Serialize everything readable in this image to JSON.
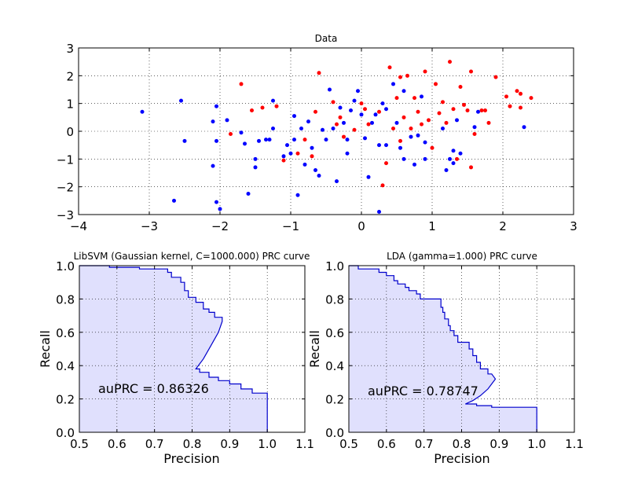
{
  "chart_data": [
    {
      "type": "scatter",
      "title": "Data",
      "xlabel": "",
      "ylabel": "",
      "xlim": [
        -4,
        3
      ],
      "ylim": [
        -3,
        3
      ],
      "xticks": [
        "−4",
        "−3",
        "−2",
        "−1",
        "0",
        "1",
        "2",
        "3"
      ],
      "yticks": [
        "−3",
        "−2",
        "−1",
        "0",
        "1",
        "2",
        "3"
      ],
      "grid": true,
      "colors": {
        "blue": "#0000ff",
        "red": "#ff0000"
      },
      "series": [
        {
          "color": "blue",
          "points": [
            [
              -3.1,
              0.7
            ],
            [
              -2.55,
              1.1
            ],
            [
              -2.5,
              -0.35
            ],
            [
              -2.65,
              -2.5
            ],
            [
              -2.1,
              -1.25
            ],
            [
              -2.05,
              -0.35
            ],
            [
              -2.05,
              0.9
            ],
            [
              -2.1,
              0.35
            ],
            [
              -1.9,
              0.4
            ],
            [
              -2.05,
              -2.55
            ],
            [
              -2.0,
              -2.8
            ],
            [
              -1.65,
              -0.45
            ],
            [
              -1.6,
              -2.25
            ],
            [
              -1.5,
              -1.3
            ],
            [
              -1.5,
              -1.0
            ],
            [
              -1.45,
              -0.35
            ],
            [
              -1.35,
              -0.3
            ],
            [
              -1.3,
              -0.3
            ],
            [
              -1.25,
              1.1
            ],
            [
              -1.25,
              0.1
            ],
            [
              -1.1,
              -0.9
            ],
            [
              -1.05,
              -0.5
            ],
            [
              -1.0,
              -0.8
            ],
            [
              -0.95,
              -0.3
            ],
            [
              -0.95,
              0.55
            ],
            [
              -0.9,
              -2.3
            ],
            [
              -0.85,
              0.1
            ],
            [
              -0.8,
              -1.2
            ],
            [
              -0.75,
              0.35
            ],
            [
              -0.7,
              -0.6
            ],
            [
              -0.65,
              -1.4
            ],
            [
              -0.6,
              -1.6
            ],
            [
              -0.55,
              0.05
            ],
            [
              -0.5,
              -0.3
            ],
            [
              -0.45,
              1.5
            ],
            [
              -0.4,
              0.1
            ],
            [
              -0.35,
              -1.8
            ],
            [
              -0.3,
              0.85
            ],
            [
              -0.25,
              0.3
            ],
            [
              -0.2,
              -0.3
            ],
            [
              -0.15,
              0.75
            ],
            [
              -0.1,
              1.1
            ],
            [
              -0.05,
              1.45
            ],
            [
              0.0,
              0.6
            ],
            [
              0.05,
              -0.25
            ],
            [
              0.1,
              -1.65
            ],
            [
              0.2,
              0.6
            ],
            [
              0.25,
              -0.5
            ],
            [
              0.25,
              -2.9
            ],
            [
              0.3,
              1.0
            ],
            [
              0.35,
              0.8
            ],
            [
              0.35,
              -0.5
            ],
            [
              0.45,
              1.7
            ],
            [
              0.5,
              0.3
            ],
            [
              0.55,
              -0.6
            ],
            [
              0.6,
              -1.0
            ],
            [
              0.6,
              1.45
            ],
            [
              0.7,
              -0.2
            ],
            [
              0.75,
              -1.2
            ],
            [
              0.8,
              -0.15
            ],
            [
              0.85,
              1.25
            ],
            [
              0.9,
              -1.0
            ],
            [
              0.9,
              -0.4
            ],
            [
              1.15,
              0.1
            ],
            [
              1.2,
              -1.4
            ],
            [
              1.25,
              -1.0
            ],
            [
              1.3,
              -0.7
            ],
            [
              1.35,
              0.4
            ],
            [
              1.4,
              -0.8
            ],
            [
              1.6,
              0.15
            ],
            [
              1.65,
              0.7
            ],
            [
              2.3,
              0.15
            ],
            [
              1.3,
              -1.15
            ],
            [
              -1.7,
              -0.05
            ],
            [
              -0.2,
              -0.8
            ],
            [
              0.15,
              0.3
            ]
          ]
        },
        {
          "color": "red",
          "points": [
            [
              -1.85,
              -0.1
            ],
            [
              -1.7,
              1.7
            ],
            [
              -1.55,
              0.75
            ],
            [
              -1.4,
              0.85
            ],
            [
              -1.2,
              0.9
            ],
            [
              -1.1,
              -1.05
            ],
            [
              -0.9,
              -0.8
            ],
            [
              -0.8,
              -0.3
            ],
            [
              -0.7,
              -0.9
            ],
            [
              -0.6,
              2.1
            ],
            [
              -0.4,
              1.05
            ],
            [
              -0.3,
              0.5
            ],
            [
              -0.25,
              -0.2
            ],
            [
              -0.1,
              0.05
            ],
            [
              0.0,
              1.0
            ],
            [
              0.05,
              0.8
            ],
            [
              0.1,
              0.25
            ],
            [
              0.25,
              0.7
            ],
            [
              0.3,
              -1.95
            ],
            [
              0.35,
              -1.15
            ],
            [
              0.4,
              2.3
            ],
            [
              0.45,
              0.1
            ],
            [
              0.5,
              1.2
            ],
            [
              0.55,
              1.95
            ],
            [
              0.6,
              0.5
            ],
            [
              0.65,
              2.0
            ],
            [
              0.7,
              0.1
            ],
            [
              0.75,
              1.2
            ],
            [
              0.8,
              0.7
            ],
            [
              0.85,
              0.25
            ],
            [
              0.9,
              2.15
            ],
            [
              0.95,
              0.4
            ],
            [
              1.0,
              -0.6
            ],
            [
              1.1,
              0.65
            ],
            [
              1.15,
              1.05
            ],
            [
              1.2,
              0.3
            ],
            [
              1.25,
              2.5
            ],
            [
              1.3,
              0.8
            ],
            [
              1.35,
              -1.0
            ],
            [
              1.4,
              1.6
            ],
            [
              1.45,
              0.95
            ],
            [
              1.5,
              0.75
            ],
            [
              1.55,
              2.15
            ],
            [
              1.6,
              -0.1
            ],
            [
              1.7,
              0.75
            ],
            [
              1.8,
              0.3
            ],
            [
              1.9,
              1.95
            ],
            [
              2.05,
              1.25
            ],
            [
              2.1,
              0.9
            ],
            [
              2.2,
              1.45
            ],
            [
              2.25,
              0.85
            ],
            [
              2.4,
              1.2
            ],
            [
              2.25,
              1.35
            ],
            [
              1.55,
              -1.3
            ],
            [
              0.55,
              -0.35
            ],
            [
              -0.65,
              0.7
            ],
            [
              1.05,
              1.7
            ],
            [
              1.75,
              0.75
            ],
            [
              -0.35,
              0.25
            ]
          ]
        }
      ]
    },
    {
      "type": "area",
      "title": "LibSVM (Gaussian kernel, C=1000.000) PRC curve",
      "xlabel": "Precision",
      "ylabel": "Recall",
      "xlim": [
        0.5,
        1.1
      ],
      "ylim": [
        0.0,
        1.0
      ],
      "xticks": [
        "0.5",
        "0.6",
        "0.7",
        "0.8",
        "0.9",
        "1.0",
        "1.1"
      ],
      "yticks": [
        "0.0",
        "0.2",
        "0.4",
        "0.6",
        "0.8",
        "1.0"
      ],
      "grid": true,
      "annotation": "auPRC = 0.86326",
      "line_color": "#0000cc",
      "fill_color": "#e0e0fd",
      "points": [
        [
          0.5,
          1.0
        ],
        [
          0.58,
          1.0
        ],
        [
          0.58,
          0.99
        ],
        [
          0.66,
          0.99
        ],
        [
          0.66,
          0.98
        ],
        [
          0.735,
          0.98
        ],
        [
          0.735,
          0.96
        ],
        [
          0.745,
          0.96
        ],
        [
          0.745,
          0.93
        ],
        [
          0.77,
          0.93
        ],
        [
          0.77,
          0.9
        ],
        [
          0.78,
          0.9
        ],
        [
          0.78,
          0.85
        ],
        [
          0.79,
          0.85
        ],
        [
          0.79,
          0.81
        ],
        [
          0.81,
          0.81
        ],
        [
          0.81,
          0.78
        ],
        [
          0.83,
          0.78
        ],
        [
          0.83,
          0.74
        ],
        [
          0.845,
          0.74
        ],
        [
          0.845,
          0.72
        ],
        [
          0.86,
          0.72
        ],
        [
          0.86,
          0.69
        ],
        [
          0.88,
          0.69
        ],
        [
          0.88,
          0.665
        ],
        [
          0.87,
          0.6
        ],
        [
          0.85,
          0.52
        ],
        [
          0.83,
          0.44
        ],
        [
          0.81,
          0.38
        ],
        [
          0.82,
          0.38
        ],
        [
          0.82,
          0.36
        ],
        [
          0.845,
          0.36
        ],
        [
          0.845,
          0.33
        ],
        [
          0.87,
          0.33
        ],
        [
          0.87,
          0.31
        ],
        [
          0.9,
          0.31
        ],
        [
          0.9,
          0.29
        ],
        [
          0.93,
          0.29
        ],
        [
          0.93,
          0.26
        ],
        [
          0.96,
          0.26
        ],
        [
          0.96,
          0.235
        ],
        [
          1.0,
          0.235
        ],
        [
          1.0,
          0.0
        ],
        [
          0.5,
          0.0
        ]
      ]
    },
    {
      "type": "area",
      "title": "LDA (gamma=1.000) PRC curve",
      "xlabel": "Precision",
      "ylabel": "Recall",
      "xlim": [
        0.5,
        1.1
      ],
      "ylim": [
        0.0,
        1.0
      ],
      "xticks": [
        "0.5",
        "0.6",
        "0.7",
        "0.8",
        "0.9",
        "1.0",
        "1.1"
      ],
      "yticks": [
        "0.0",
        "0.2",
        "0.4",
        "0.6",
        "0.8",
        "1.0"
      ],
      "grid": true,
      "annotation": "auPRC = 0.78747",
      "line_color": "#0000cc",
      "fill_color": "#e0e0fd",
      "points": [
        [
          0.5,
          1.0
        ],
        [
          0.525,
          1.0
        ],
        [
          0.525,
          0.98
        ],
        [
          0.58,
          0.98
        ],
        [
          0.58,
          0.96
        ],
        [
          0.6,
          0.96
        ],
        [
          0.6,
          0.94
        ],
        [
          0.62,
          0.94
        ],
        [
          0.62,
          0.91
        ],
        [
          0.63,
          0.91
        ],
        [
          0.63,
          0.89
        ],
        [
          0.65,
          0.89
        ],
        [
          0.65,
          0.87
        ],
        [
          0.66,
          0.87
        ],
        [
          0.66,
          0.85
        ],
        [
          0.68,
          0.85
        ],
        [
          0.68,
          0.83
        ],
        [
          0.69,
          0.83
        ],
        [
          0.69,
          0.8
        ],
        [
          0.745,
          0.8
        ],
        [
          0.745,
          0.75
        ],
        [
          0.75,
          0.75
        ],
        [
          0.75,
          0.72
        ],
        [
          0.755,
          0.72
        ],
        [
          0.755,
          0.68
        ],
        [
          0.765,
          0.68
        ],
        [
          0.765,
          0.64
        ],
        [
          0.77,
          0.64
        ],
        [
          0.77,
          0.61
        ],
        [
          0.78,
          0.61
        ],
        [
          0.78,
          0.58
        ],
        [
          0.79,
          0.58
        ],
        [
          0.79,
          0.54
        ],
        [
          0.82,
          0.54
        ],
        [
          0.82,
          0.5
        ],
        [
          0.83,
          0.5
        ],
        [
          0.83,
          0.46
        ],
        [
          0.84,
          0.46
        ],
        [
          0.84,
          0.42
        ],
        [
          0.85,
          0.42
        ],
        [
          0.85,
          0.38
        ],
        [
          0.87,
          0.38
        ],
        [
          0.87,
          0.35
        ],
        [
          0.88,
          0.35
        ],
        [
          0.89,
          0.32
        ],
        [
          0.87,
          0.26
        ],
        [
          0.85,
          0.22
        ],
        [
          0.83,
          0.19
        ],
        [
          0.81,
          0.17
        ],
        [
          0.84,
          0.17
        ],
        [
          0.84,
          0.16
        ],
        [
          0.88,
          0.16
        ],
        [
          0.88,
          0.15
        ],
        [
          1.0,
          0.15
        ],
        [
          1.0,
          0.0
        ],
        [
          0.5,
          0.0
        ]
      ]
    }
  ]
}
